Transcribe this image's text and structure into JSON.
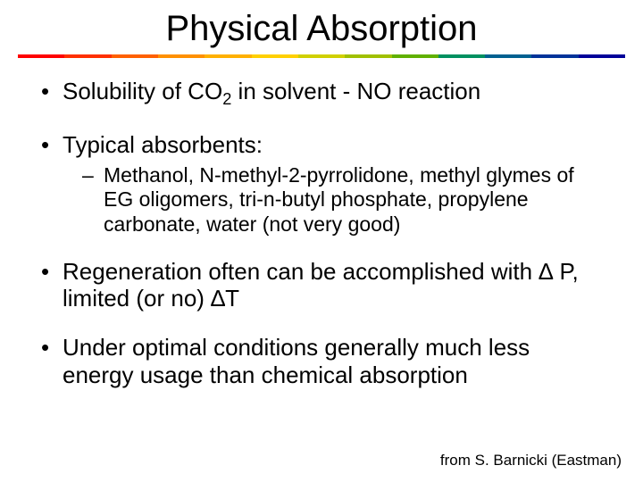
{
  "title": "Physical Absorption",
  "underline_colors": [
    "#ff0000",
    "#ff3000",
    "#ff6000",
    "#ff9000",
    "#ffb000",
    "#ffd000",
    "#d0d000",
    "#a0c000",
    "#60b000",
    "#009060",
    "#006090",
    "#003399",
    "#000099"
  ],
  "bullets": {
    "b1_pre": "Solubility of CO",
    "b1_sub": "2",
    "b1_post": " in solvent - NO reaction",
    "b2": "Typical absorbents:",
    "b2_sub": "Methanol, N-methyl-2-pyrrolidone, methyl glymes of EG oligomers, tri-n-butyl phosphate, propylene carbonate, water (not very good)",
    "b3": "Regeneration often can be accomplished with ∆ P, limited (or no) ∆T",
    "b4": "Under optimal conditions generally much less energy usage than chemical absorption"
  },
  "footer": "from S. Barnicki (Eastman)"
}
